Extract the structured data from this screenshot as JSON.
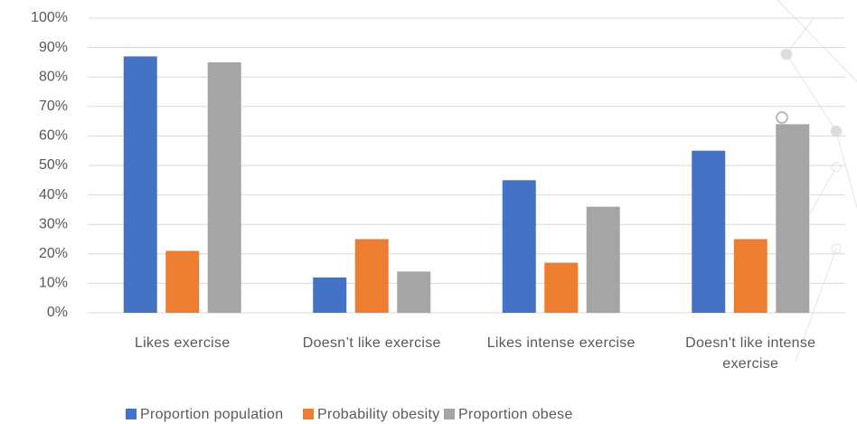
{
  "chart_data": {
    "type": "bar",
    "categories": [
      "Likes exercise",
      "Doesn’t like exercise",
      "Likes intense exercise",
      "Doesn't like intense exercise"
    ],
    "series": [
      {
        "name": "Proportion population",
        "color": "#4472c4",
        "values": [
          87,
          12,
          45,
          55
        ]
      },
      {
        "name": "Probability obesity",
        "color": "#ed7d31",
        "values": [
          21,
          25,
          17,
          25
        ]
      },
      {
        "name": "Proportion obese",
        "color": "#a5a5a5",
        "values": [
          85,
          14,
          36,
          64
        ]
      }
    ],
    "ylim": [
      0,
      100
    ],
    "yticks": [
      {
        "value": 0,
        "label": "0%"
      },
      {
        "value": 10,
        "label": "10%"
      },
      {
        "value": 20,
        "label": "20%"
      },
      {
        "value": 30,
        "label": "30%"
      },
      {
        "value": 40,
        "label": "40%"
      },
      {
        "value": 50,
        "label": "50%"
      },
      {
        "value": 60,
        "label": "60%"
      },
      {
        "value": 70,
        "label": "70%"
      },
      {
        "value": 80,
        "label": "80%"
      },
      {
        "value": 90,
        "label": "90%"
      },
      {
        "value": 100,
        "label": "100%"
      }
    ],
    "grid": true,
    "legend": "bottom"
  }
}
